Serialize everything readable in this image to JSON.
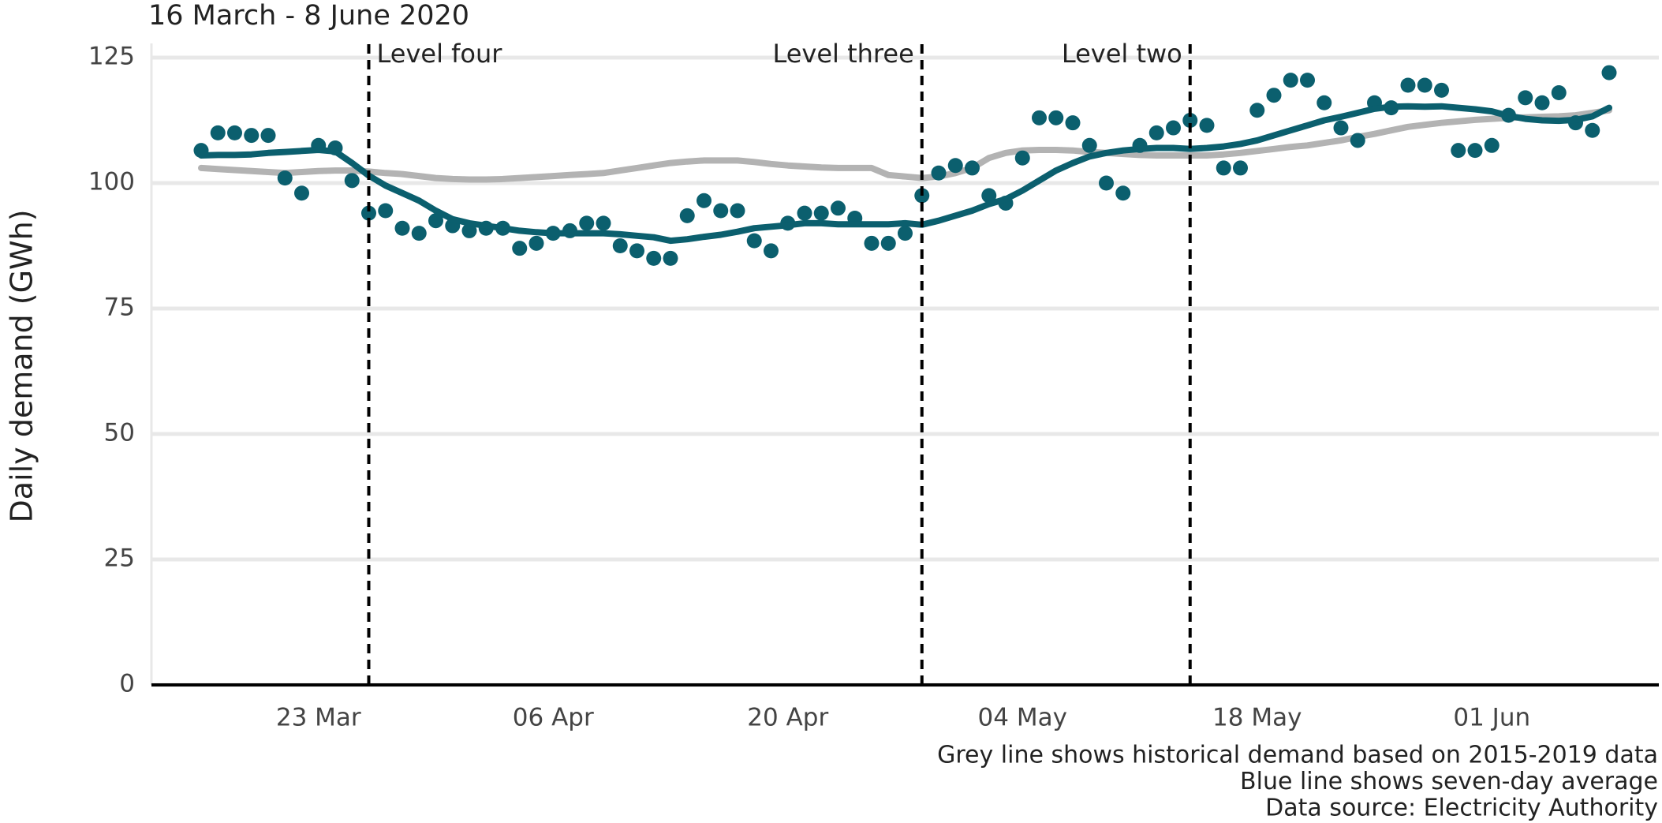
{
  "chart_data": {
    "type": "line",
    "title": "16 March - 8 June 2020",
    "ylabel": "Daily demand (GWh)",
    "caption": [
      "Grey line shows historical demand based on 2015-2019 data",
      "Blue line shows seven-day average",
      "Data source: Electricity Authority"
    ],
    "categories": [
      "16 Mar",
      "17 Mar",
      "18 Mar",
      "19 Mar",
      "20 Mar",
      "21 Mar",
      "22 Mar",
      "23 Mar",
      "24 Mar",
      "25 Mar",
      "26 Mar",
      "27 Mar",
      "28 Mar",
      "29 Mar",
      "30 Mar",
      "31 Mar",
      "01 Apr",
      "02 Apr",
      "03 Apr",
      "04 Apr",
      "05 Apr",
      "06 Apr",
      "07 Apr",
      "08 Apr",
      "09 Apr",
      "10 Apr",
      "11 Apr",
      "12 Apr",
      "13 Apr",
      "14 Apr",
      "15 Apr",
      "16 Apr",
      "17 Apr",
      "18 Apr",
      "19 Apr",
      "20 Apr",
      "21 Apr",
      "22 Apr",
      "23 Apr",
      "24 Apr",
      "25 Apr",
      "26 Apr",
      "27 Apr",
      "28 Apr",
      "29 Apr",
      "30 Apr",
      "01 May",
      "02 May",
      "03 May",
      "04 May",
      "05 May",
      "06 May",
      "07 May",
      "08 May",
      "09 May",
      "10 May",
      "11 May",
      "12 May",
      "13 May",
      "14 May",
      "15 May",
      "16 May",
      "17 May",
      "18 May",
      "19 May",
      "20 May",
      "21 May",
      "22 May",
      "23 May",
      "24 May",
      "25 May",
      "26 May",
      "27 May",
      "28 May",
      "29 May",
      "30 May",
      "31 May",
      "01 Jun",
      "02 Jun",
      "03 Jun",
      "04 Jun",
      "05 Jun",
      "06 Jun",
      "07 Jun",
      "08 Jun"
    ],
    "series": [
      {
        "style": "line",
        "color": "#b3b3b3",
        "values": [
          103,
          102.8,
          102.6,
          102.4,
          102.2,
          102,
          102.2,
          102.4,
          102.5,
          102.5,
          102.3,
          102,
          101.8,
          101.4,
          101,
          100.8,
          100.7,
          100.7,
          100.8,
          101,
          101.2,
          101.4,
          101.6,
          101.8,
          102,
          102.5,
          103,
          103.5,
          104,
          104.3,
          104.5,
          104.5,
          104.5,
          104.2,
          103.8,
          103.5,
          103.3,
          103.1,
          103,
          103,
          103,
          101.6,
          101.3,
          101,
          101.3,
          102,
          103,
          105,
          106,
          106.5,
          106.6,
          106.6,
          106.5,
          106.2,
          106,
          105.8,
          105.6,
          105.5,
          105.5,
          105.5,
          105.5,
          105.7,
          106,
          106.4,
          106.8,
          107.2,
          107.5,
          108,
          108.5,
          109.2,
          109.8,
          110.5,
          111.2,
          111.6,
          112,
          112.3,
          112.6,
          112.8,
          113,
          113.1,
          113.2,
          113.3,
          113.5,
          114,
          114.5
        ]
      },
      {
        "style": "scatter",
        "color": "#0b5f6e",
        "values": [
          106.5,
          110,
          110,
          109.5,
          109.5,
          101,
          98,
          107.5,
          107,
          100.5,
          94,
          94.5,
          91,
          90,
          92.5,
          91.5,
          90.5,
          91,
          91,
          87,
          88,
          90,
          90.5,
          92,
          92,
          87.5,
          86.5,
          85,
          85,
          93.5,
          96.5,
          94.5,
          94.5,
          88.5,
          86.5,
          92,
          94,
          94,
          95,
          93,
          88,
          88,
          90,
          97.5,
          102,
          103.5,
          103,
          97.5,
          96,
          105,
          113,
          113,
          112,
          107.5,
          100,
          98,
          107.5,
          110,
          111,
          112.5,
          111.5,
          103,
          103,
          114.5,
          117.5,
          120.5,
          120.5,
          116,
          111,
          108.5,
          116,
          115,
          119.5,
          119.5,
          118.5,
          106.5,
          106.5,
          107.5,
          113.5,
          117,
          116,
          118,
          112,
          110.5,
          122
        ]
      },
      {
        "style": "line",
        "color": "#0b5f6e",
        "values": [
          105.5,
          105.6,
          105.6,
          105.7,
          106,
          106.2,
          106.4,
          106.6,
          106.3,
          104,
          101.5,
          99.5,
          98,
          96.5,
          94.5,
          92.8,
          92,
          91.5,
          91,
          90.5,
          90.2,
          90,
          90,
          90,
          90,
          89.8,
          89.5,
          89.2,
          88.5,
          88.8,
          89.3,
          89.7,
          90.3,
          91,
          91.3,
          91.6,
          92,
          92,
          91.8,
          91.8,
          91.8,
          91.8,
          92,
          91.7,
          92.5,
          93.5,
          94.5,
          95.8,
          96.8,
          98.5,
          100.5,
          102.5,
          104,
          105.3,
          106,
          106.5,
          106.8,
          107,
          107,
          106.8,
          107,
          107.3,
          107.8,
          108.5,
          109.5,
          110.5,
          111.5,
          112.5,
          113.2,
          114,
          114.8,
          115.2,
          115.3,
          115.2,
          115.3,
          115,
          114.7,
          114.3,
          113.4,
          112.8,
          112.5,
          112.4,
          112.6,
          113.3,
          115
        ]
      }
    ],
    "events": [
      {
        "x": "26 Mar",
        "label": "Level four",
        "label_side": "right"
      },
      {
        "x": "28 Apr",
        "label": "Level three",
        "label_side": "left"
      },
      {
        "x": "14 May",
        "label": "Level two",
        "label_side": "left"
      }
    ],
    "ylim": [
      0,
      125
    ],
    "yticks": [
      0,
      25,
      50,
      75,
      100,
      125
    ],
    "xticks": [
      "23 Mar",
      "06 Apr",
      "20 Apr",
      "04 May",
      "18 May",
      "01 Jun"
    ],
    "grid": true
  }
}
